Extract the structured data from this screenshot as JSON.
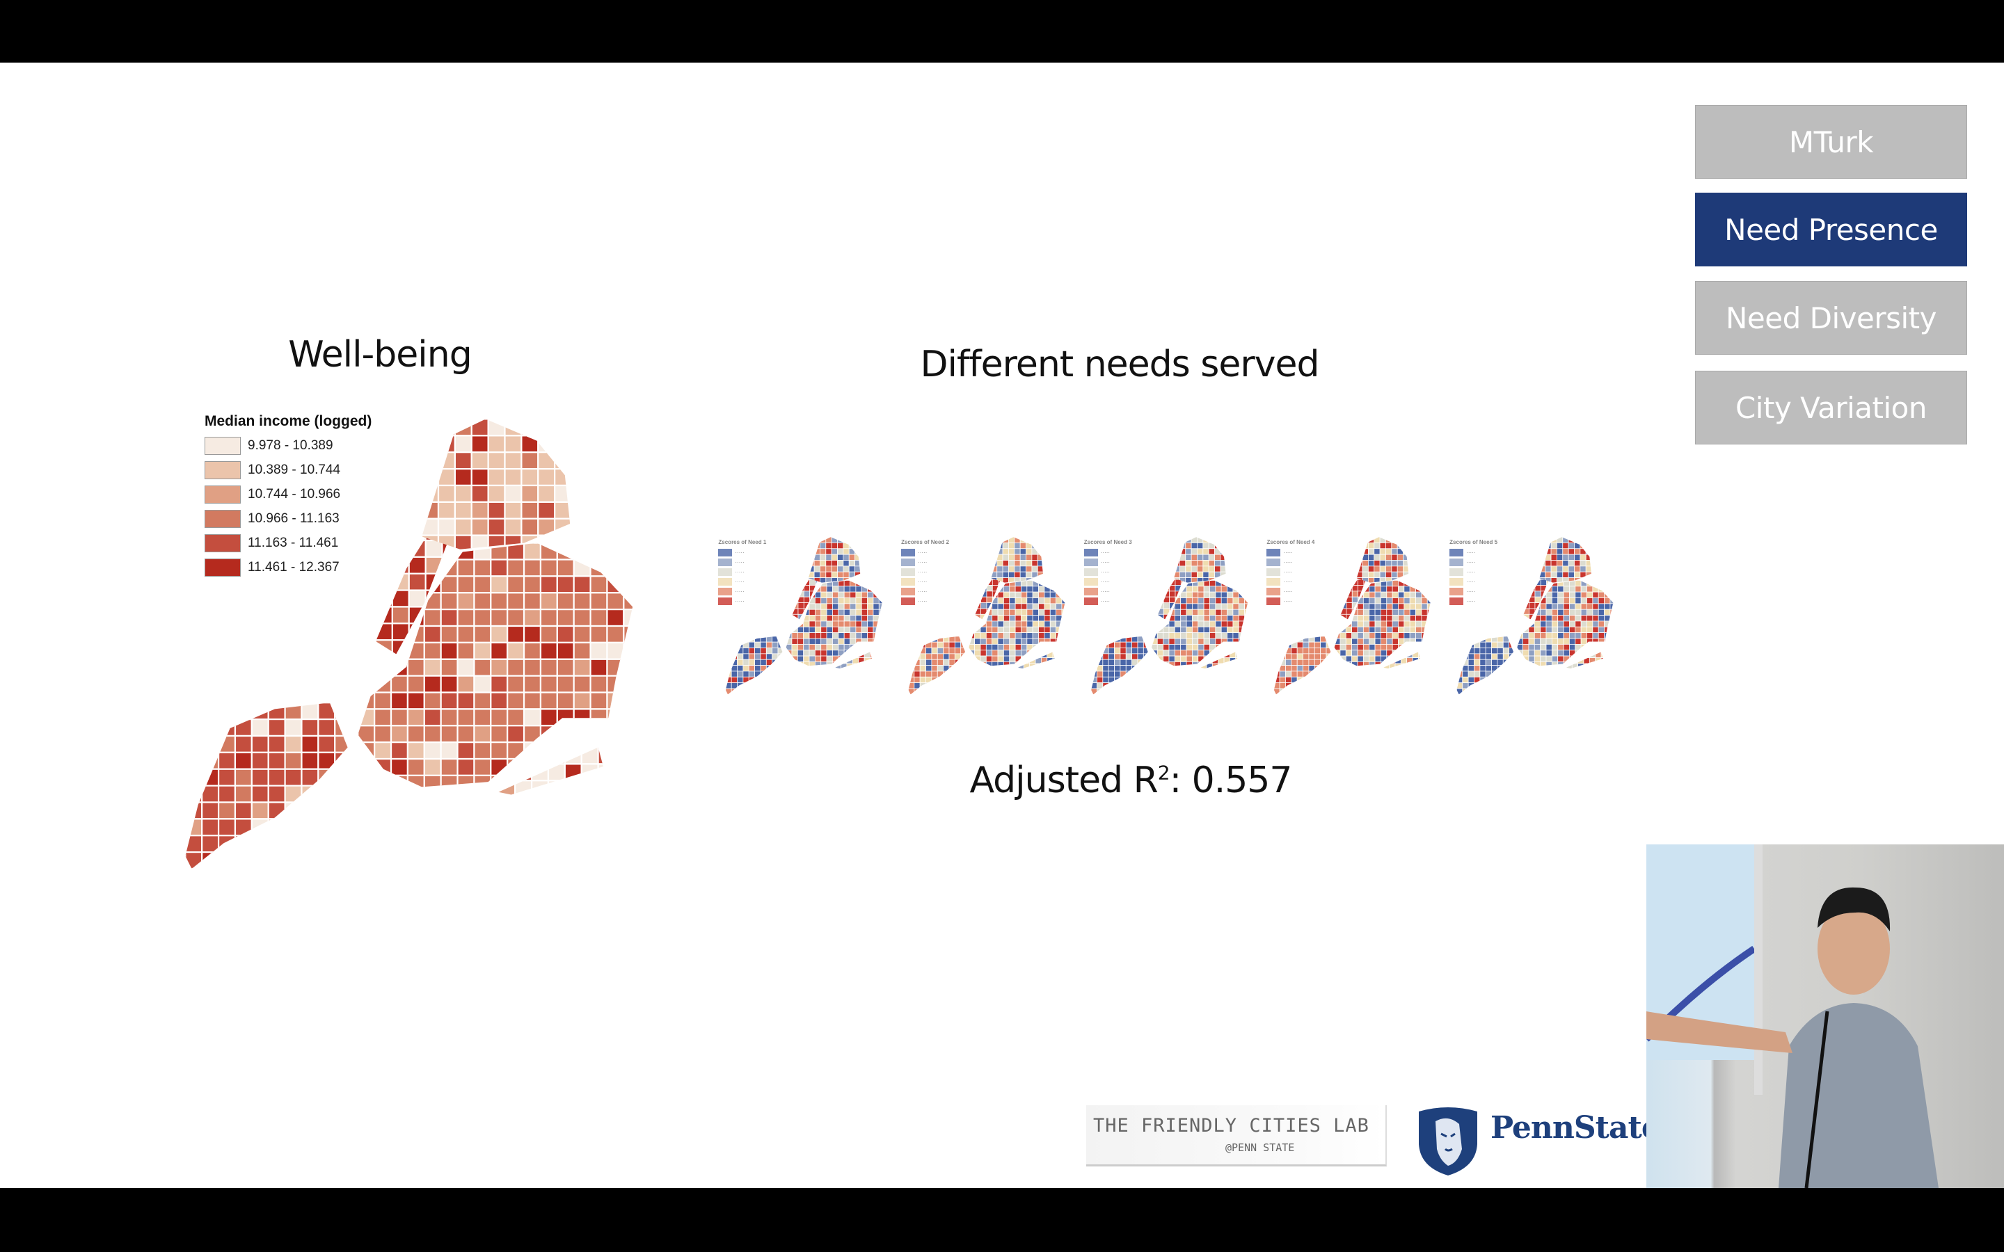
{
  "slide": {
    "left_title": "Well-being",
    "center_title": "Different needs served",
    "r2_label": "Adjusted R",
    "r2_sup": "2",
    "r2_value": ": 0.557"
  },
  "nav": [
    {
      "label": "MTurk",
      "active": false
    },
    {
      "label": "Need Presence",
      "active": true
    },
    {
      "label": "Need Diversity",
      "active": false
    },
    {
      "label": "City Variation",
      "active": false
    }
  ],
  "legend": {
    "title": "Median income (logged)",
    "items": [
      {
        "label": "9.978 - 10.389",
        "color": "#f6ebe2"
      },
      {
        "label": "10.389 - 10.744",
        "color": "#ebc4ab"
      },
      {
        "label": "10.744 - 10.966",
        "color": "#e0a084"
      },
      {
        "label": "10.966 - 11.163",
        "color": "#d27a60"
      },
      {
        "label": "11.163 - 11.461",
        "color": "#c44e3e"
      },
      {
        "label": "11.461 - 12.367",
        "color": "#b52a1e"
      }
    ]
  },
  "need_maps": [
    {
      "title": "Zscores of Need 1"
    },
    {
      "title": "Zscores of Need 2"
    },
    {
      "title": "Zscores of Need 3"
    },
    {
      "title": "Zscores of Need 4"
    },
    {
      "title": "Zscores of Need 5"
    }
  ],
  "need_palette": [
    "#4a66a8",
    "#8e9fc2",
    "#dcdcd0",
    "#efdcb0",
    "#e48a6e",
    "#c9352e"
  ],
  "logos": {
    "lab_line1": "THE FRIENDLY CITIES LAB",
    "lab_line2": "@PENN STATE",
    "university": "PennState"
  }
}
